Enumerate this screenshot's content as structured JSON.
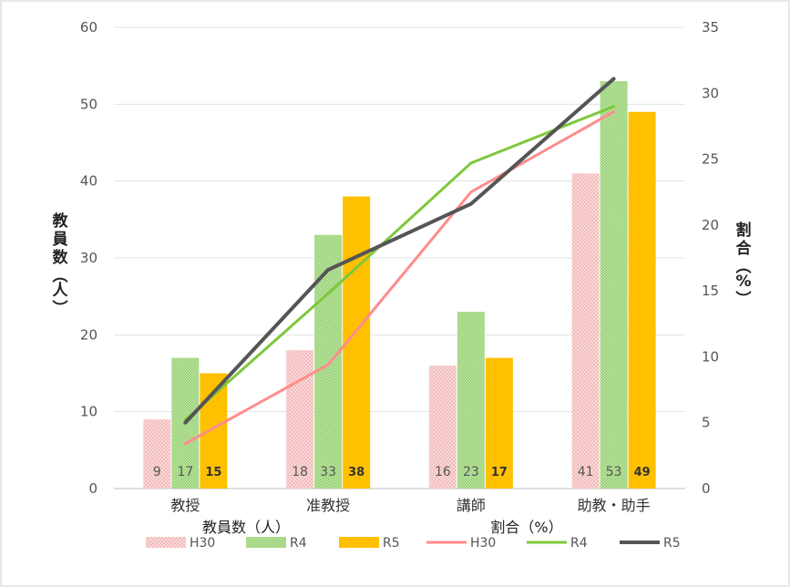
{
  "chart_data": {
    "type": "bar+line",
    "categories": [
      "教授",
      "准教授",
      "講師",
      "助教・助手"
    ],
    "y_left": {
      "label": "教員数（人）",
      "ylim": [
        0,
        60
      ],
      "ticks": [
        0,
        10,
        20,
        30,
        40,
        50,
        60
      ]
    },
    "y_right": {
      "label": "割合（%）",
      "ylim": [
        0,
        35
      ],
      "ticks": [
        0,
        5,
        10,
        15,
        20,
        25,
        30,
        35
      ]
    },
    "bar_group_title": "教員数（人）",
    "line_group_title": "割合（%）",
    "bar_series": [
      {
        "name": "H30",
        "values": [
          9,
          18,
          16,
          41
        ],
        "color": "#f4c6c6",
        "labels": [
          "9",
          "18",
          "16",
          "41"
        ]
      },
      {
        "name": "R4",
        "values": [
          17,
          33,
          23,
          53
        ],
        "color": "#a8d98a",
        "labels": [
          "17",
          "33",
          "23",
          "53"
        ]
      },
      {
        "name": "R5",
        "values": [
          15,
          38,
          17,
          49
        ],
        "color": "#ffc000",
        "labels": [
          "15",
          "38",
          "17",
          "49"
        ]
      }
    ],
    "line_series": [
      {
        "name": "H30",
        "values": [
          3.4,
          9.4,
          22.5,
          28.6
        ],
        "color": "#ff8c8c"
      },
      {
        "name": "R4",
        "values": [
          5.2,
          14.8,
          24.7,
          29.0
        ],
        "color": "#7dc83c"
      },
      {
        "name": "R5",
        "values": [
          5.0,
          16.6,
          21.6,
          31.1
        ],
        "color": "#555555"
      }
    ],
    "grid": true,
    "legend_position": "bottom"
  }
}
